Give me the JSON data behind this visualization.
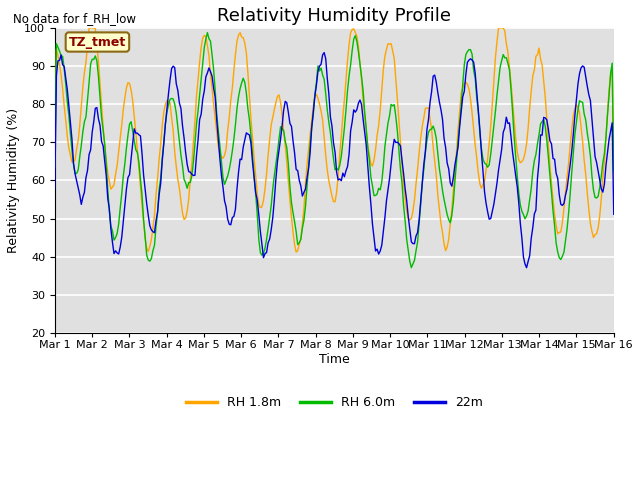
{
  "title": "Relativity Humidity Profile",
  "subtitle": "No data for f_RH_low",
  "xlabel": "Time",
  "ylabel": "Relativity Humidity (%)",
  "ylim": [
    20,
    100
  ],
  "yticks": [
    20,
    30,
    40,
    50,
    60,
    70,
    80,
    90,
    100
  ],
  "xtick_labels": [
    "Mar 1",
    "Mar 2",
    "Mar 3",
    "Mar 4",
    "Mar 5",
    "Mar 6",
    "Mar 7",
    "Mar 8",
    "Mar 9",
    "Mar 10",
    "Mar 11",
    "Mar 12",
    "Mar 13",
    "Mar 14",
    "Mar 15",
    "Mar 16"
  ],
  "color_rh18": "#FFA500",
  "color_rh60": "#00BB00",
  "color_22m": "#0000DD",
  "legend_labels": [
    "RH 1.8m",
    "RH 6.0m",
    "22m"
  ],
  "annotation_text": "TZ_tmet",
  "annotation_box_color": "#FFFFCC",
  "annotation_box_edge": "#8B6914",
  "background_color": "#E0E0E0",
  "grid_color": "#FFFFFF",
  "title_fontsize": 13,
  "label_fontsize": 9,
  "tick_fontsize": 8,
  "n_days": 15,
  "hours_per_day": 24,
  "figwidth": 6.4,
  "figheight": 4.8,
  "dpi": 100
}
